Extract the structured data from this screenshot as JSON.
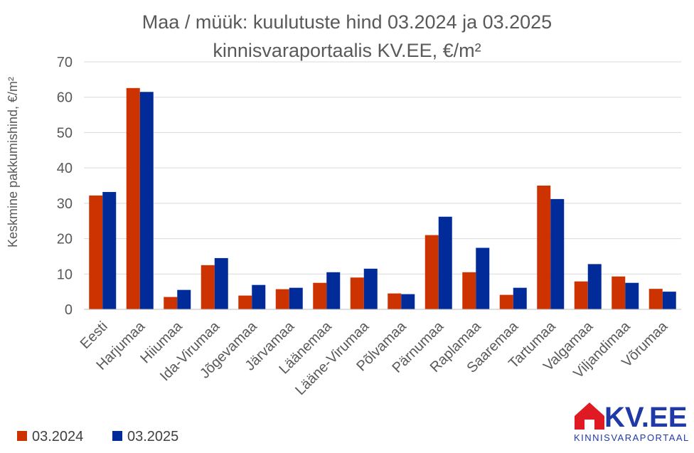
{
  "chart_data": {
    "type": "bar",
    "title_line1": "Maa / müük: kuulutuste hind 03.2024 ja 03.2025",
    "title_line2": "kinnisvaraportaalis KV.EE, €/m²",
    "ylabel": "Keskmine pakkumishind, €/m²",
    "xlabel": "",
    "ylim": [
      0,
      70
    ],
    "yticks": [
      0,
      10,
      20,
      30,
      40,
      50,
      60,
      70
    ],
    "grid": true,
    "legend_position": "bottom-left",
    "categories": [
      "Eesti",
      "Harjumaa",
      "Hiiumaa",
      "Ida-Virumaa",
      "Jõgevamaa",
      "Järvamaa",
      "Läänemaa",
      "Lääne-Virumaa",
      "Põlvamaa",
      "Pärnumaa",
      "Raplamaa",
      "Saaremaa",
      "Tartumaa",
      "Valgamaa",
      "Viljandimaa",
      "Võrumaa"
    ],
    "series": [
      {
        "name": "03.2024",
        "color": "#cc3300",
        "values": [
          32.2,
          62.6,
          3.5,
          12.5,
          3.9,
          5.7,
          7.5,
          9.0,
          4.5,
          21.0,
          10.5,
          4.1,
          35.0,
          7.9,
          9.3,
          5.8
        ]
      },
      {
        "name": "03.2025",
        "color": "#002b99",
        "values": [
          33.2,
          61.5,
          5.5,
          14.5,
          6.9,
          6.1,
          10.5,
          11.5,
          4.3,
          26.2,
          17.4,
          6.1,
          31.2,
          12.8,
          7.5,
          5.0
        ]
      }
    ]
  },
  "logo": {
    "text": "KV.EE",
    "subtitle": "KINNISVARAPORTAAL",
    "icon": "house-icon",
    "color": "#1f3aa6",
    "accent": "#e01a22"
  }
}
